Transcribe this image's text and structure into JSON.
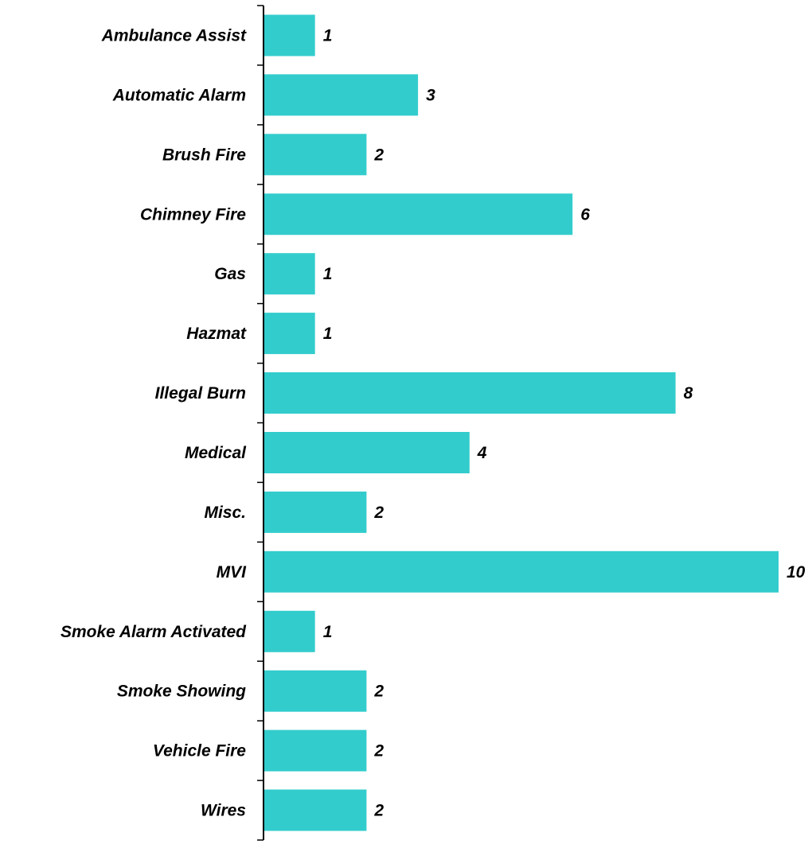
{
  "chart_data": {
    "type": "bar",
    "orientation": "horizontal",
    "categories": [
      "Ambulance Assist",
      "Automatic Alarm",
      "Brush Fire",
      "Chimney Fire",
      "Gas",
      "Hazmat",
      "Illegal Burn",
      "Medical",
      "Misc.",
      "MVI",
      "Smoke Alarm Activated",
      "Smoke Showing",
      "Vehicle Fire",
      "Wires"
    ],
    "values": [
      1,
      3,
      2,
      6,
      1,
      1,
      8,
      4,
      2,
      10,
      1,
      2,
      2,
      2
    ],
    "value_labels": [
      "1",
      "3",
      "2",
      "6",
      "1",
      "1",
      "8",
      "4",
      "2",
      "10",
      "1",
      "2",
      "2",
      "2"
    ],
    "title": "",
    "xlabel": "",
    "ylabel": "",
    "xlim": [
      0,
      10
    ],
    "grid": false,
    "legend": "none",
    "colors": {
      "bar": "#33CCCC",
      "axis": "#000000",
      "text": "#000000"
    }
  }
}
